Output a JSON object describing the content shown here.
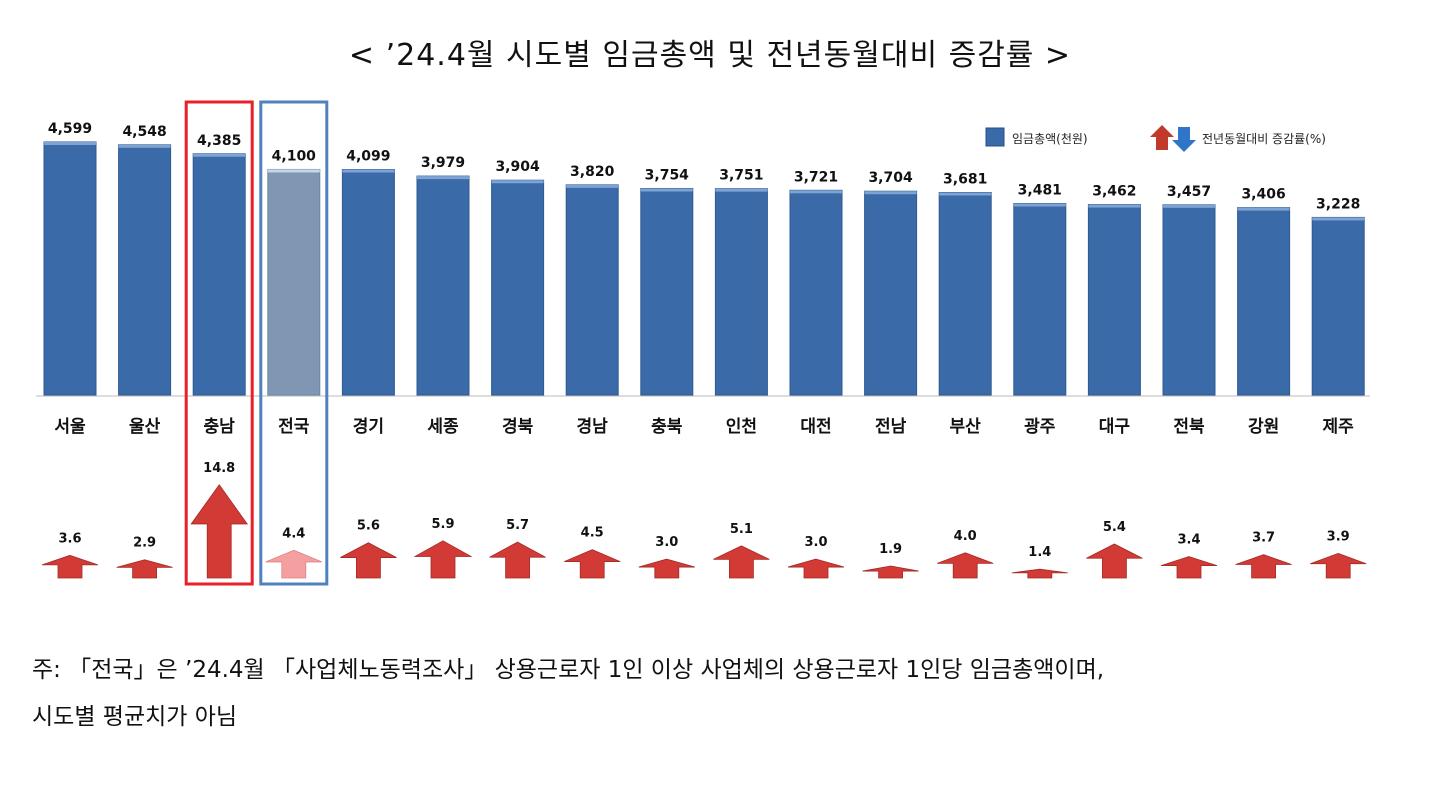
{
  "title": "< ’24.4월 시도별 임금총액 및 전년동월대비 증감률 >",
  "chart_data": {
    "type": "bar",
    "title": "’24.4월 시도별 임금총액 및 전년동월대비 증감률",
    "categories": [
      "서울",
      "울산",
      "충남",
      "전국",
      "경기",
      "세종",
      "경북",
      "경남",
      "충북",
      "인천",
      "대전",
      "전남",
      "부산",
      "광주",
      "대구",
      "전북",
      "강원",
      "제주"
    ],
    "series": [
      {
        "name": "임금총액(천원)",
        "values": [
          4599,
          4548,
          4385,
          4100,
          4099,
          3979,
          3904,
          3820,
          3754,
          3751,
          3721,
          3704,
          3681,
          3481,
          3462,
          3457,
          3406,
          3228
        ],
        "value_labels": [
          "4,599",
          "4,548",
          "4,385",
          "4,100",
          "4,099",
          "3,979",
          "3,904",
          "3,820",
          "3,754",
          "3,751",
          "3,721",
          "3,704",
          "3,681",
          "3,481",
          "3,462",
          "3,457",
          "3,406",
          "3,228"
        ],
        "color": "#3B6AA8",
        "type": "bar"
      },
      {
        "name": "전년동월대비 증감률(%)",
        "values": [
          3.6,
          2.9,
          14.8,
          4.4,
          5.6,
          5.9,
          5.7,
          4.5,
          3.0,
          5.1,
          3.0,
          1.9,
          4.0,
          1.4,
          5.4,
          3.4,
          3.7,
          3.9
        ],
        "value_labels": [
          "3.6",
          "2.9",
          "14.8",
          "4.4",
          "5.6",
          "5.9",
          "5.7",
          "4.5",
          "3.0",
          "5.1",
          "3.0",
          "1.9",
          "4.0",
          "1.4",
          "5.4",
          "3.4",
          "3.7",
          "3.9"
        ],
        "color": "#D23A35",
        "type": "arrow"
      }
    ],
    "highlight": [
      {
        "category": "충남",
        "color": "#E8202A"
      },
      {
        "category": "전국",
        "color": "#4F81BD"
      }
    ],
    "national_bar_color": "#7F97B2",
    "national_arrow_color": "#F4A0A0",
    "legend": {
      "position": "top-right",
      "entries": [
        "임금총액(천원)",
        "전년동월대비 증감률(%)"
      ],
      "arrow_down_color": "#2F75C8"
    },
    "ylim": [
      0,
      4600
    ],
    "grid": false
  },
  "note": {
    "line1": "주: 「전국」은 ’24.4월 「사업체노동력조사」 상용근로자 1인 이상 사업체의 상용근로자 1인당 임금총액이며,",
    "line2": "시도별 평균치가 아님"
  }
}
